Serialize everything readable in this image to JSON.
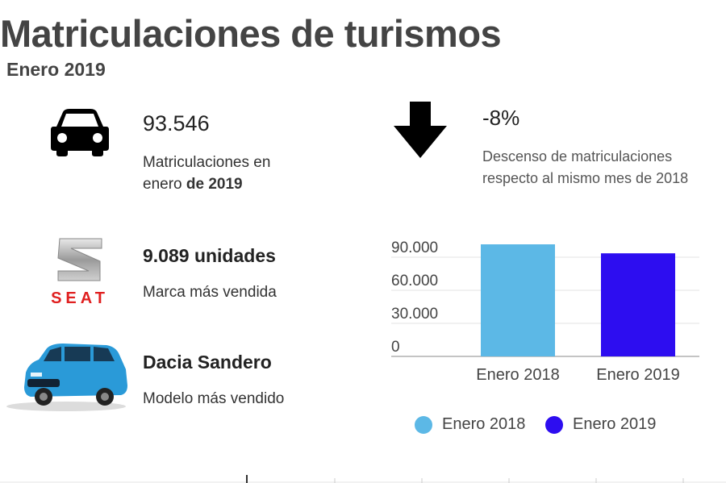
{
  "header": {
    "title": "Matriculaciones de turismos",
    "subtitle": "Enero 2019"
  },
  "stats": {
    "total": {
      "value": "93.546",
      "label_part1": "Matriculaciones en",
      "label_part2_plain": "enero ",
      "label_part2_bold": "de 2019"
    },
    "change": {
      "value": "-8%",
      "label_line1": "Descenso de matriculaciones",
      "label_line2": "respecto al mismo mes de 2018"
    },
    "brand": {
      "value": "9.089 unidades",
      "label": "Marca más vendida",
      "logo_text": "SEAT"
    },
    "model": {
      "value": "Dacia Sandero",
      "label": "Modelo más vendido"
    }
  },
  "colors": {
    "series_2018": "#5cb8e6",
    "series_2019": "#2d0df0",
    "seat_red": "#e02020"
  },
  "icons": {
    "total": "car-icon",
    "change": "down-arrow-icon",
    "brand": "seat-logo",
    "model": "dacia-sandero-image"
  },
  "chart_data": {
    "type": "bar",
    "categories": [
      "Enero 2018",
      "Enero 2019"
    ],
    "values": [
      101700,
      93546
    ],
    "series_names": [
      "Enero 2018",
      "Enero 2019"
    ],
    "y_ticks": [
      "0",
      "30.000",
      "60.000",
      "90.000"
    ],
    "y_tick_values": [
      0,
      30000,
      60000,
      90000
    ],
    "ylim": [
      0,
      120000
    ],
    "grid": true,
    "legend_position": "bottom"
  }
}
